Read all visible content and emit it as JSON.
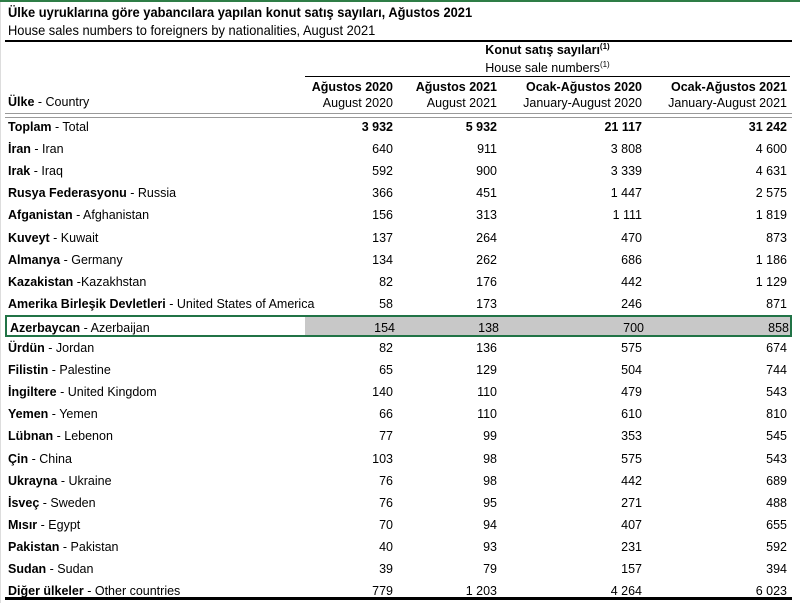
{
  "title": "Ülke uyruklarına göre yabancılara yapılan konut satış sayıları, Ağustos 2021",
  "subtitle": "House sales numbers to foreigners by nationalities, August 2021",
  "group_header": {
    "tr": "Konut satış sayıları",
    "en": "House sale numbers",
    "footnote": "(1)"
  },
  "columns": {
    "country": {
      "tr": "Ülke",
      "en": " - Country"
    },
    "c1": {
      "tr": "Ağustos 2020",
      "en": "August 2020"
    },
    "c2": {
      "tr": "Ağustos 2021",
      "en": "August 2021"
    },
    "c3": {
      "tr": "Ocak-Ağustos 2020",
      "en": "January-August 2020"
    },
    "c4": {
      "tr": "Ocak-Ağustos 2021",
      "en": "January-August 2021"
    }
  },
  "selected_row": "Azerbaycan",
  "selection_color": "#217346",
  "rows": [
    {
      "tr": "Toplam",
      "en": " - Total",
      "v": [
        "3 932",
        "5 932",
        "21 117",
        "31 242"
      ],
      "bold": true
    },
    {
      "tr": "İran",
      "en": " - Iran",
      "v": [
        "640",
        "911",
        "3 808",
        "4 600"
      ]
    },
    {
      "tr": "Irak",
      "en": " - Iraq",
      "v": [
        "592",
        "900",
        "3 339",
        "4 631"
      ]
    },
    {
      "tr": "Rusya Federasyonu",
      "en": " - Russia",
      "v": [
        "366",
        "451",
        "1 447",
        "2 575"
      ]
    },
    {
      "tr": "Afganistan",
      "en": " - Afghanistan",
      "v": [
        "156",
        "313",
        "1 111",
        "1 819"
      ]
    },
    {
      "tr": "Kuveyt",
      "en": " - Kuwait",
      "v": [
        "137",
        "264",
        "470",
        "873"
      ]
    },
    {
      "tr": "Almanya",
      "en": " - Germany",
      "v": [
        "134",
        "262",
        "686",
        "1 186"
      ]
    },
    {
      "tr": "Kazakistan",
      "en": " -Kazakhstan",
      "v": [
        "82",
        "176",
        "442",
        "1 129"
      ]
    },
    {
      "tr": "Amerika Birleşik Devletleri",
      "en": " - United States of America",
      "v": [
        "58",
        "173",
        "246",
        "871"
      ]
    },
    {
      "tr": "Azerbaycan",
      "en": " - Azerbaijan",
      "v": [
        "154",
        "138",
        "700",
        "858"
      ]
    },
    {
      "tr": "Ürdün",
      "en": " - Jordan",
      "v": [
        "82",
        "136",
        "575",
        "674"
      ]
    },
    {
      "tr": "Filistin",
      "en": " - Palestine",
      "v": [
        "65",
        "129",
        "504",
        "744"
      ]
    },
    {
      "tr": "İngiltere",
      "en": " - United Kingdom",
      "v": [
        "140",
        "110",
        "479",
        "543"
      ]
    },
    {
      "tr": "Yemen",
      "en": " - Yemen",
      "v": [
        "66",
        "110",
        "610",
        "810"
      ]
    },
    {
      "tr": "Lübnan",
      "en": " - Lebenon",
      "v": [
        "77",
        "99",
        "353",
        "545"
      ]
    },
    {
      "tr": "Çin",
      "en": " - China",
      "v": [
        "103",
        "98",
        "575",
        "543"
      ]
    },
    {
      "tr": "Ukrayna",
      "en": " - Ukraine",
      "v": [
        "76",
        "98",
        "442",
        "689"
      ]
    },
    {
      "tr": "İsveç",
      "en": " - Sweden",
      "v": [
        "76",
        "95",
        "271",
        "488"
      ]
    },
    {
      "tr": "Mısır",
      "en": " - Egypt",
      "v": [
        "70",
        "94",
        "407",
        "655"
      ]
    },
    {
      "tr": "Pakistan",
      "en": " - Pakistan",
      "v": [
        "40",
        "93",
        "231",
        "592"
      ]
    },
    {
      "tr": "Sudan",
      "en": " - Sudan",
      "v": [
        "39",
        "79",
        "157",
        "394"
      ]
    },
    {
      "tr": "Diğer ülkeler",
      "en": " - Other countries",
      "v": [
        "779",
        "1 203",
        "4 264",
        "6 023"
      ]
    }
  ]
}
